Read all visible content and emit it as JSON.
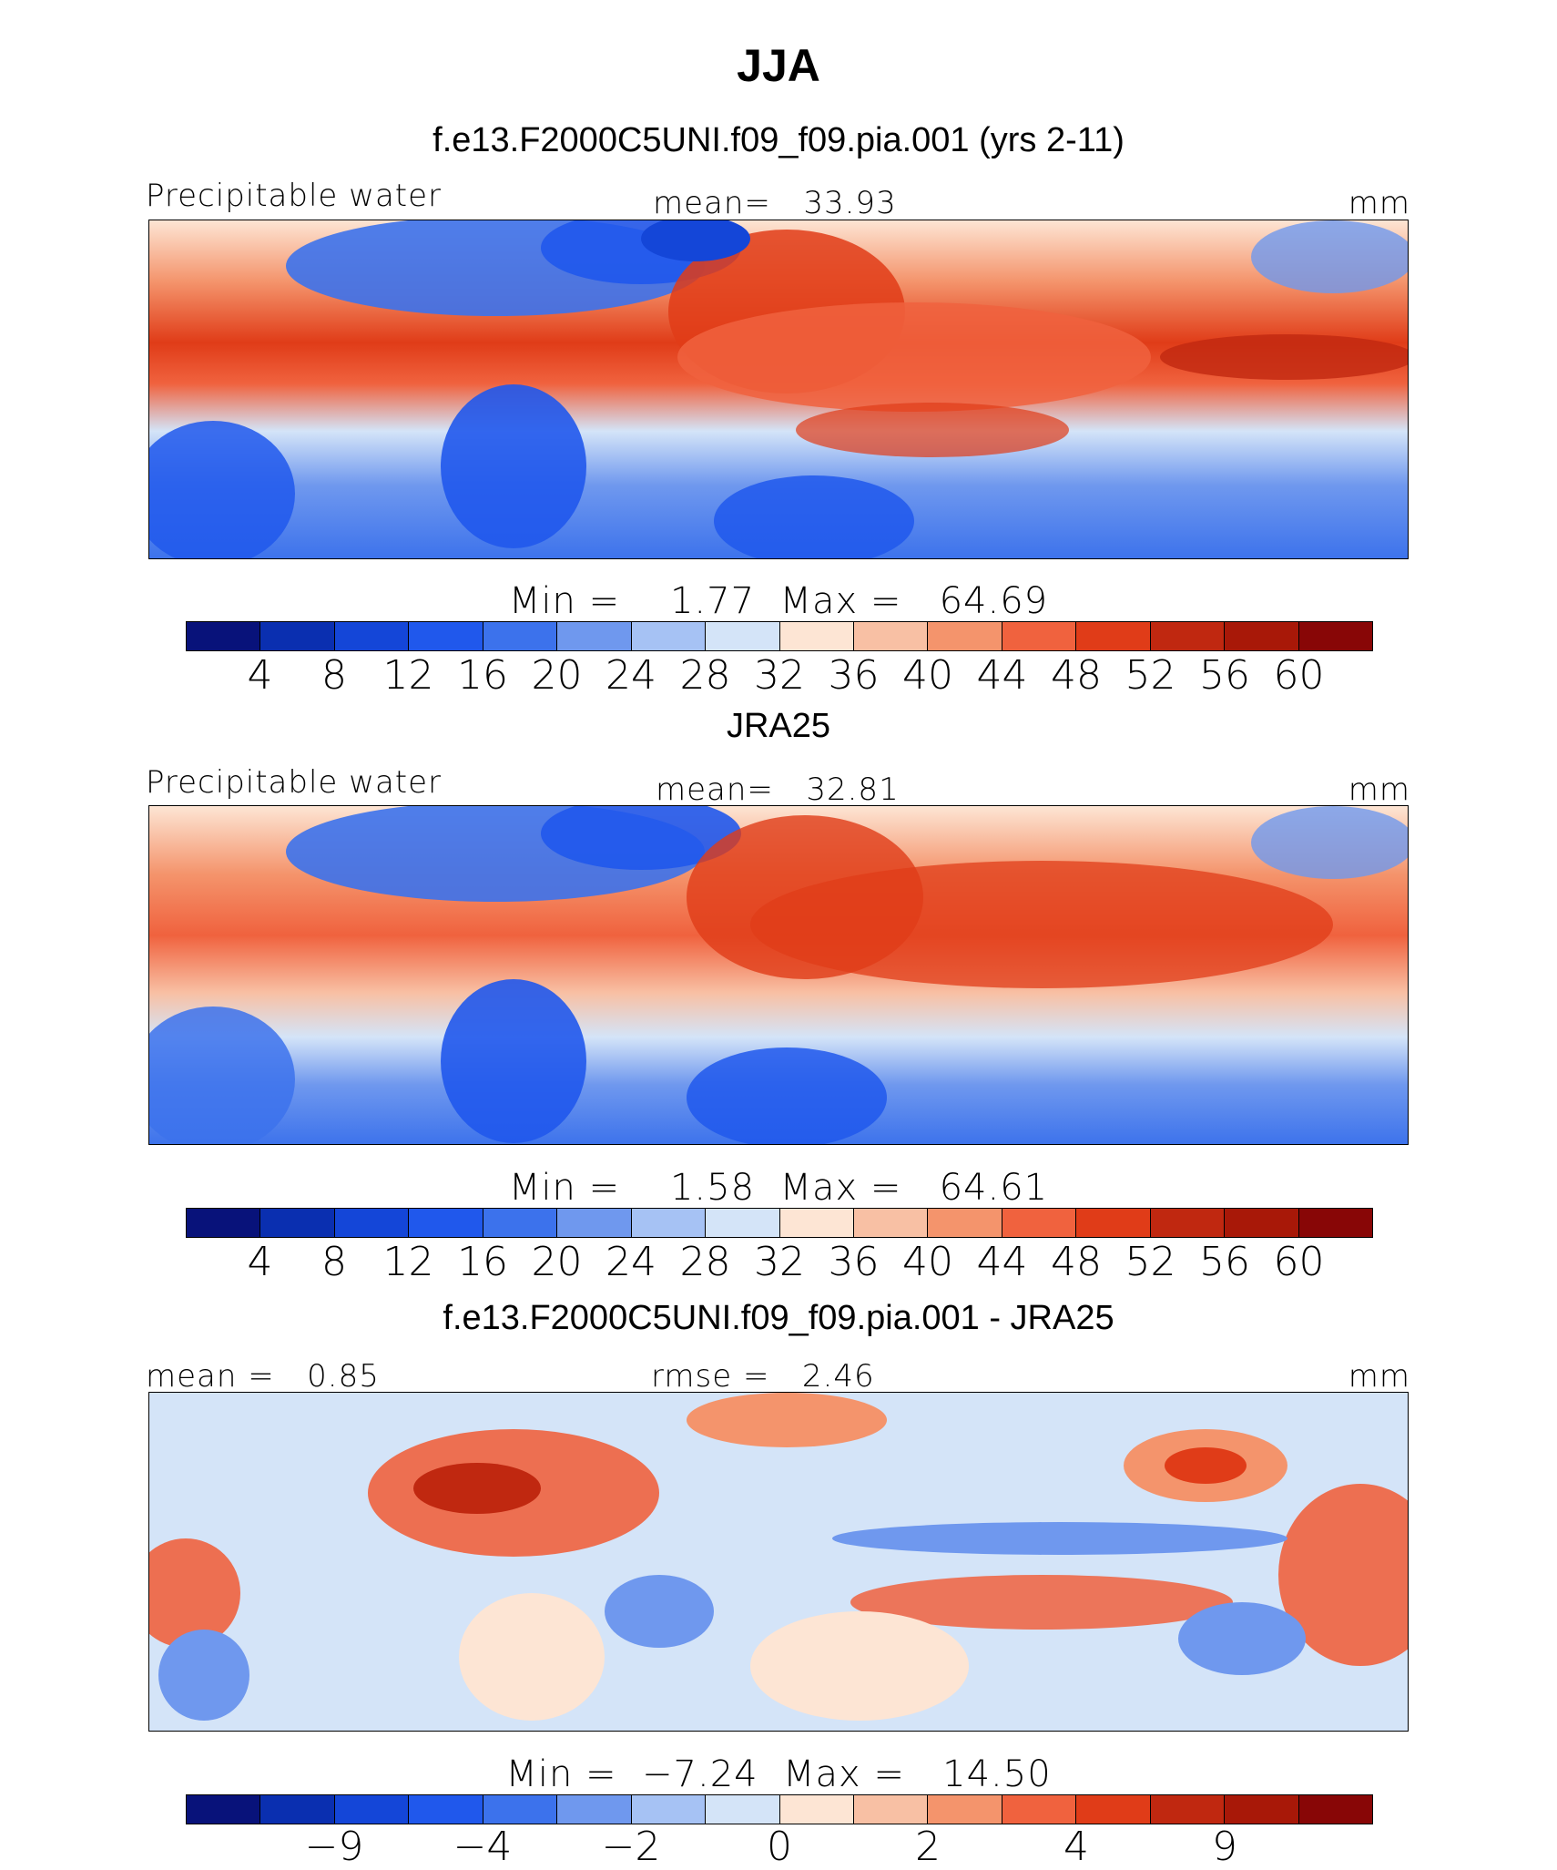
{
  "figure": {
    "season": "JJA"
  },
  "colors": {
    "model_obs_scale": [
      "#08127a",
      "#0a2fb0",
      "#1446d8",
      "#2058ec",
      "#3c72ec",
      "#6f98ee",
      "#a6c2f4",
      "#d4e4f8",
      "#fde5d4",
      "#f8c0a4",
      "#f4946c",
      "#f0623e",
      "#e03c18",
      "#c02810",
      "#a81808",
      "#880606"
    ],
    "diff_scale": [
      "#08127a",
      "#0a2fb0",
      "#1446d8",
      "#2058ec",
      "#3c72ec",
      "#6f98ee",
      "#a6c2f4",
      "#d4e4f8",
      "#fde5d4",
      "#f8c0a4",
      "#f4946c",
      "#f0623e",
      "#e03c18",
      "#c02810",
      "#a81808",
      "#880606"
    ]
  },
  "chart_data": [
    {
      "type": "heatmap",
      "title": "f.e13.F2000C5UNI.f09_f09.pia.001 (yrs 2-11)",
      "variable": "Precipitable water",
      "mean_label": "mean=",
      "mean": "33.93",
      "units": "mm",
      "min_label": "Min =",
      "min": "1.77",
      "max_label": "Max =",
      "max": "64.69",
      "levels": [
        "4",
        "8",
        "12",
        "16",
        "20",
        "24",
        "28",
        "32",
        "36",
        "40",
        "44",
        "48",
        "52",
        "56",
        "60"
      ]
    },
    {
      "type": "heatmap",
      "title": "JRA25",
      "variable": "Precipitable water",
      "mean_label": "mean=",
      "mean": "32.81",
      "units": "mm",
      "min_label": "Min =",
      "min": "1.58",
      "max_label": "Max =",
      "max": "64.61",
      "levels": [
        "4",
        "8",
        "12",
        "16",
        "20",
        "24",
        "28",
        "32",
        "36",
        "40",
        "44",
        "48",
        "52",
        "56",
        "60"
      ]
    },
    {
      "type": "heatmap",
      "title": "f.e13.F2000C5UNI.f09_f09.pia.001 - JRA25",
      "mean_label": "mean =",
      "mean": "0.85",
      "rmse_label": "rmse =",
      "rmse": "2.46",
      "units": "mm",
      "min_label": "Min =",
      "min": "−7.24",
      "max_label": "Max =",
      "max": "14.50",
      "levels": [
        "−9",
        "−4",
        "−2",
        "0",
        "2",
        "4",
        "9"
      ]
    }
  ]
}
